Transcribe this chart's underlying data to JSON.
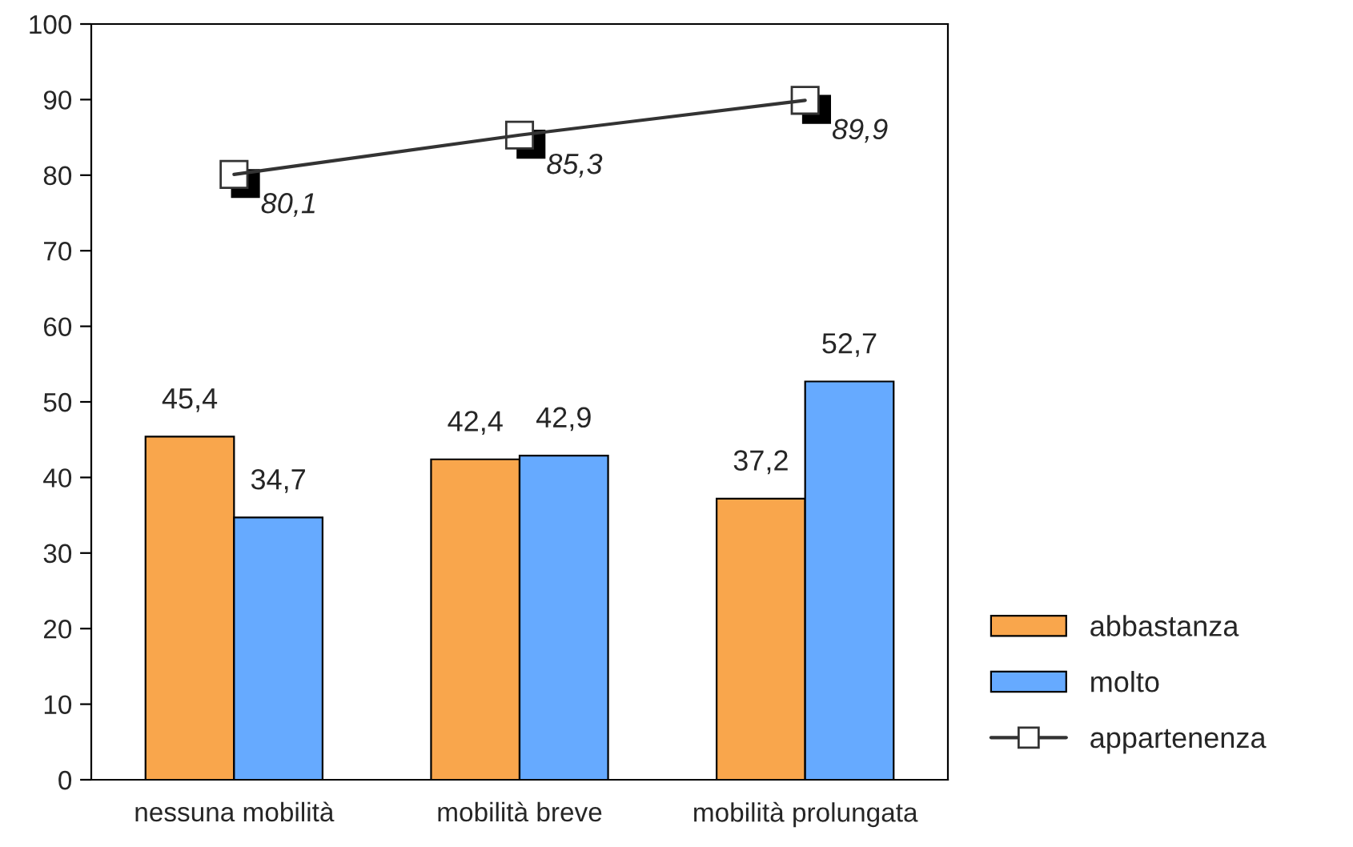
{
  "chart_data": {
    "type": "bar",
    "categories": [
      "nessuna mobilità",
      "mobilità breve",
      "mobilità prolungata"
    ],
    "series": [
      {
        "name": "abbastanza",
        "color": "#f9a64c",
        "values": [
          45.4,
          42.4,
          37.2
        ],
        "value_labels": [
          "45,4",
          "42,4",
          "37,2"
        ]
      },
      {
        "name": "molto",
        "color": "#66aaff",
        "values": [
          34.7,
          42.9,
          52.7
        ],
        "value_labels": [
          "34,7",
          "42,9",
          "52,7"
        ]
      },
      {
        "name": "appartenenza",
        "type": "line",
        "color": "#333333",
        "marker": "square",
        "values": [
          80.1,
          85.3,
          89.9
        ],
        "value_labels": [
          "80,1",
          "85,3",
          "89,9"
        ]
      }
    ],
    "ylim": [
      0,
      100
    ],
    "yticks": [
      0,
      10,
      20,
      30,
      40,
      50,
      60,
      70,
      80,
      90,
      100
    ],
    "grid": false,
    "legend": "bottom right"
  }
}
